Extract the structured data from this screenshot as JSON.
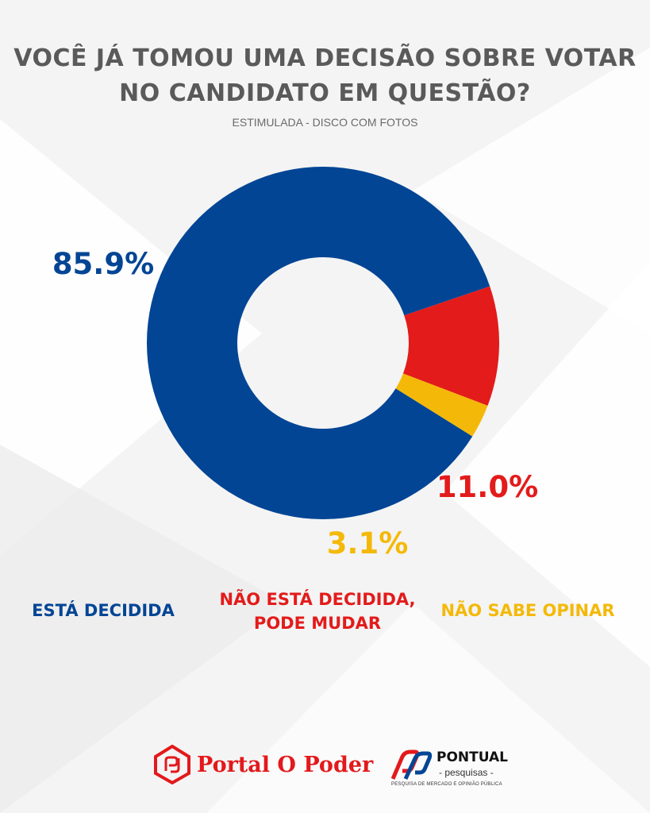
{
  "title_lines": [
    "VOCÊ JÁ TOMOU UMA DECISÃO SOBRE VOTAR",
    "NO CANDIDATO EM QUESTÃO?"
  ],
  "subtitle": "ESTIMULADA - DISCO COM FOTOS",
  "colors": {
    "blue": "#024595",
    "red": "#e31b1b",
    "yellow": "#f4b908",
    "title": "#5a5a5a",
    "background": "#f4f4f4"
  },
  "chart_data": {
    "type": "pie",
    "variant": "donut",
    "slices": [
      {
        "label": "ESTÁ DECIDIDA",
        "value": 85.9,
        "value_label": "85.9%",
        "color": "#024595"
      },
      {
        "label": "NÃO ESTÁ DECIDIDA, PODE MUDAR",
        "value": 11.0,
        "value_label": "11.0%",
        "color": "#e31b1b"
      },
      {
        "label": "NÃO SABE OPINAR",
        "value": 3.1,
        "value_label": "3.1%",
        "color": "#f4b908"
      }
    ]
  },
  "legend": {
    "item1": "ESTÁ DECIDIDA",
    "item2_line1": "NÃO ESTÁ DECIDIDA,",
    "item2_line2": "PODE MUDAR",
    "item3": "NÃO SABE OPINAR"
  },
  "footer": {
    "portal_name": "Portal O Poder",
    "pontual_name": "PONTUAL",
    "pontual_sub": "- pesquisas -",
    "pontual_tagline": "PESQUISA DE MERCADO E OPINIÃO PÚBLICA"
  }
}
